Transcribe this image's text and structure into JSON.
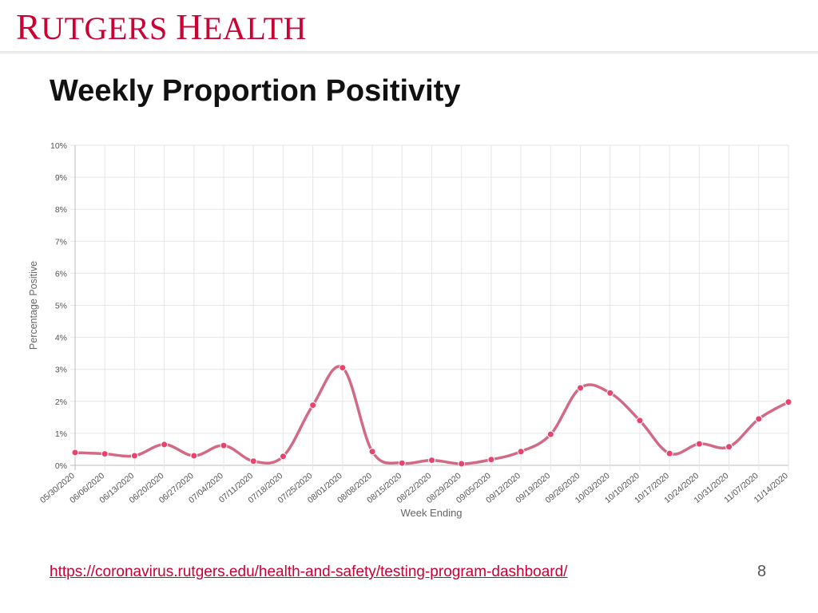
{
  "header": {
    "logo_text": "RUTGERS HEALTH",
    "logo_r": "R",
    "logo_rest1": "UTGERS ",
    "logo_h": "H",
    "logo_rest2": "EALTH",
    "brand_color": "#cc0033"
  },
  "slide": {
    "title": "Weekly Proportion Positivity",
    "footer_link": "https://coronavirus.rutgers.edu/health-and-safety/testing-program-dashboard/",
    "page_number": "8"
  },
  "chart_data": {
    "type": "line",
    "title": "",
    "xlabel": "Week Ending",
    "ylabel": "Percentage Positive",
    "ylim": [
      0,
      10
    ],
    "yticks": [
      "0%",
      "1%",
      "2%",
      "3%",
      "4%",
      "5%",
      "6%",
      "7%",
      "8%",
      "9%",
      "10%"
    ],
    "grid": true,
    "line_color": "#d26a86",
    "point_color": "#e8436e",
    "categories": [
      "05/30/2020",
      "06/06/2020",
      "06/13/2020",
      "06/20/2020",
      "06/27/2020",
      "07/04/2020",
      "07/11/2020",
      "07/18/2020",
      "07/25/2020",
      "08/01/2020",
      "08/08/2020",
      "08/15/2020",
      "08/22/2020",
      "08/29/2020",
      "09/05/2020",
      "09/12/2020",
      "09/19/2020",
      "09/26/2020",
      "10/03/2020",
      "10/10/2020",
      "10/17/2020",
      "10/24/2020",
      "10/31/2020",
      "11/07/2020",
      "11/14/2020"
    ],
    "values": [
      0.4,
      0.36,
      0.3,
      0.65,
      0.3,
      0.62,
      0.13,
      0.28,
      1.88,
      3.05,
      0.43,
      0.07,
      0.16,
      0.05,
      0.18,
      0.43,
      0.97,
      2.42,
      2.26,
      1.4,
      0.37,
      0.67,
      0.58,
      1.45,
      1.98
    ]
  }
}
